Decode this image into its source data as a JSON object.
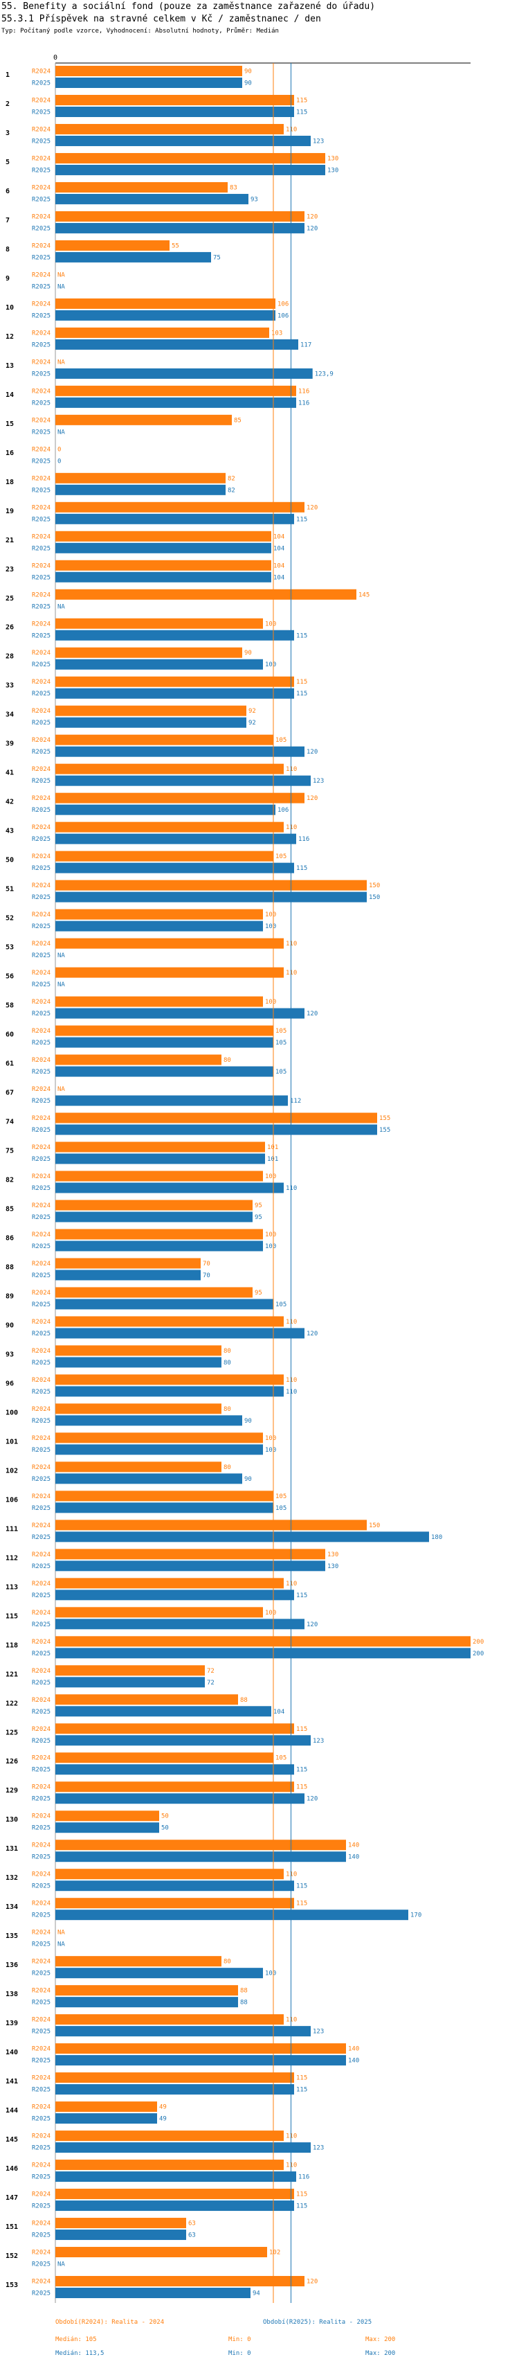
{
  "header": {
    "title_line1": "55. Benefity a sociální fond (pouze za zaměstnance zařazené do úřadu)",
    "title_line2": "55.3.1 Příspěvek na stravné celkem v Kč / zaměstnanec / den",
    "subtitle": "Typ: Počítaný podle vzorce, Vyhodnocení: Absolutní hodnoty, Průměr: Medián"
  },
  "colors": {
    "r2024": "#ff7f0e",
    "r2025": "#1f77b4"
  },
  "chart_data": {
    "type": "bar",
    "orientation": "horizontal",
    "xlim": [
      0,
      200
    ],
    "axis_tick_labels": [
      "0"
    ],
    "series_names": [
      "R2024",
      "R2025"
    ],
    "na_label": "NA",
    "reference_lines": [
      {
        "name": "Medián R2024",
        "value": 105
      },
      {
        "name": "Medián R2025",
        "value": 113.5
      }
    ],
    "categories": [
      "1",
      "2",
      "3",
      "5",
      "6",
      "7",
      "8",
      "9",
      "10",
      "12",
      "13",
      "14",
      "15",
      "16",
      "18",
      "19",
      "21",
      "23",
      "25",
      "26",
      "28",
      "33",
      "34",
      "39",
      "41",
      "42",
      "43",
      "50",
      "51",
      "52",
      "53",
      "56",
      "58",
      "60",
      "61",
      "67",
      "74",
      "75",
      "82",
      "85",
      "86",
      "88",
      "89",
      "90",
      "93",
      "96",
      "100",
      "101",
      "102",
      "106",
      "111",
      "112",
      "113",
      "115",
      "118",
      "121",
      "122",
      "125",
      "126",
      "129",
      "130",
      "131",
      "132",
      "134",
      "135",
      "136",
      "138",
      "139",
      "140",
      "141",
      "144",
      "145",
      "146",
      "147",
      "151",
      "152",
      "153"
    ],
    "series": [
      {
        "name": "R2024",
        "values": [
          90,
          115,
          110,
          130,
          83,
          120,
          55,
          null,
          106,
          103,
          null,
          116,
          85,
          0,
          82,
          120,
          104,
          104,
          145,
          100,
          90,
          115,
          92,
          105,
          110,
          120,
          110,
          105,
          150,
          100,
          110,
          110,
          100,
          105,
          80,
          null,
          155,
          101,
          100,
          95,
          100,
          70,
          95,
          110,
          80,
          110,
          80,
          100,
          80,
          105,
          150,
          130,
          110,
          100,
          200,
          72,
          88,
          115,
          105,
          115,
          50,
          140,
          110,
          115,
          null,
          80,
          88,
          110,
          140,
          115,
          49,
          110,
          110,
          115,
          63,
          102,
          120
        ]
      },
      {
        "name": "R2025",
        "values": [
          90,
          115,
          123,
          130,
          93,
          120,
          75,
          null,
          106,
          117,
          123.9,
          116,
          null,
          0,
          82,
          115,
          104,
          104,
          null,
          115,
          100,
          115,
          92,
          120,
          123,
          106,
          116,
          115,
          150,
          100,
          null,
          null,
          120,
          105,
          105,
          112,
          155,
          101,
          110,
          95,
          100,
          70,
          105,
          120,
          80,
          110,
          90,
          100,
          90,
          105,
          180,
          130,
          115,
          120,
          200,
          72,
          104,
          123,
          115,
          120,
          50,
          140,
          115,
          170,
          null,
          100,
          88,
          123,
          140,
          115,
          49,
          123,
          116,
          115,
          63,
          null,
          94
        ]
      }
    ]
  },
  "footer": {
    "r2024_label": "Období(R2024): Realita - 2024",
    "r2025_label": "Období(R2025): Realita - 2025",
    "r2024_median": "Medián: 105",
    "r2024_min": "Min: 0",
    "r2024_max": "Max: 200",
    "r2025_median": "Medián: 113,5",
    "r2025_min": "Min: 0",
    "r2025_max": "Max: 200"
  }
}
